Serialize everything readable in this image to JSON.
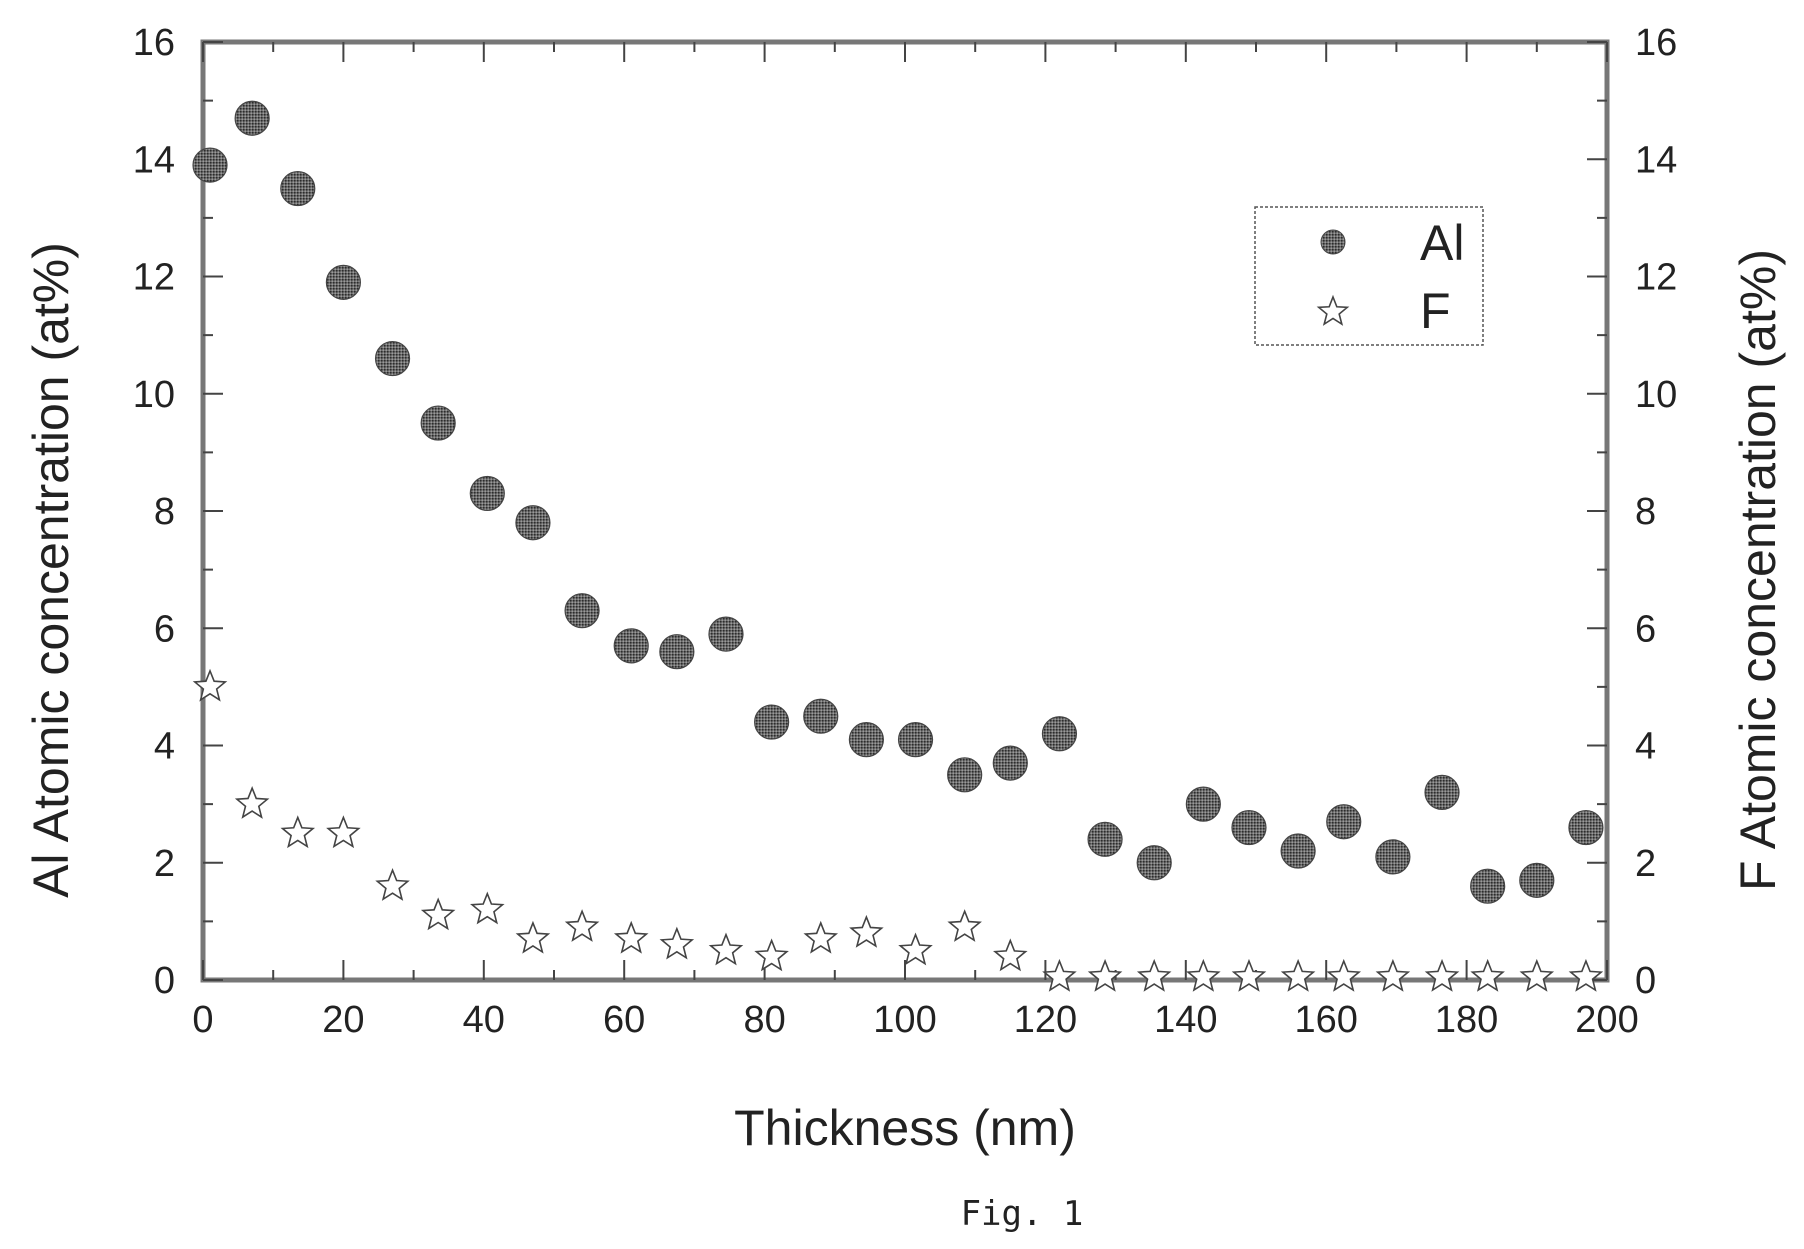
{
  "chart_data": {
    "type": "scatter",
    "x_label": "Thickness (nm)",
    "y_label_left": "Al Atomic concentration (at%)",
    "y_label_right": "F Atomic concentration (at%)",
    "x_range": [
      0,
      200
    ],
    "y_range": [
      0,
      16
    ],
    "x_ticks": [
      0,
      20,
      40,
      60,
      80,
      100,
      120,
      140,
      160,
      180,
      200
    ],
    "y_ticks": [
      0,
      2,
      4,
      6,
      8,
      10,
      12,
      14,
      16
    ],
    "grid": false,
    "legend_position": "top-right",
    "colors": {
      "al_marker": "#555555",
      "f_marker": "#ffffff",
      "axis": "#777777"
    },
    "series": [
      {
        "name": "Al",
        "marker": "circle",
        "axis": "left",
        "x": [
          1,
          7,
          13.5,
          20,
          27,
          33.5,
          40.5,
          47,
          54,
          61,
          67.5,
          74.5,
          81,
          88,
          94.5,
          101.5,
          108.5,
          115,
          122,
          128.5,
          135.5,
          142.5,
          149,
          156,
          162.5,
          169.5,
          176.5,
          183,
          190,
          197
        ],
        "y": [
          13.9,
          14.7,
          13.5,
          11.9,
          10.6,
          9.5,
          8.3,
          7.8,
          6.3,
          5.7,
          5.6,
          5.9,
          4.4,
          4.5,
          4.1,
          4.1,
          3.5,
          3.7,
          4.2,
          2.4,
          2.0,
          3.0,
          2.6,
          2.2,
          2.7,
          2.1,
          3.2,
          1.6,
          1.7,
          2.6
        ]
      },
      {
        "name": "F",
        "marker": "star",
        "axis": "right",
        "x": [
          1,
          7,
          13.5,
          20,
          27,
          33.5,
          40.5,
          47,
          54,
          61,
          67.5,
          74.5,
          81,
          88,
          94.5,
          101.5,
          108.5,
          115,
          122,
          128.5,
          135.5,
          142.5,
          149,
          156,
          162.5,
          169.5,
          176.5,
          183,
          190,
          197
        ],
        "y": [
          5.0,
          3.0,
          2.5,
          2.5,
          1.6,
          1.1,
          1.2,
          0.7,
          0.9,
          0.7,
          0.6,
          0.5,
          0.4,
          0.7,
          0.8,
          0.5,
          0.9,
          0.4,
          0.05,
          0.05,
          0.05,
          0.05,
          0.05,
          0.05,
          0.05,
          0.05,
          0.05,
          0.05,
          0.05,
          0.05
        ]
      }
    ]
  },
  "caption": "Fig. 1"
}
